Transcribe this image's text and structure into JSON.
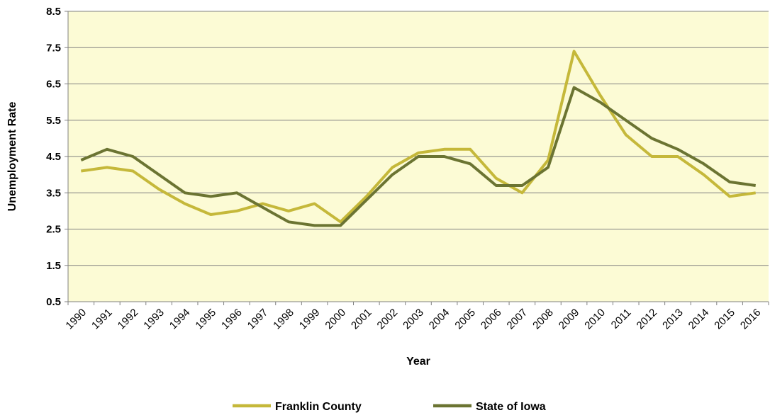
{
  "chart_data": {
    "type": "line",
    "title": "",
    "xlabel": "Year",
    "ylabel": "Unemployment Rate",
    "ylim": [
      0.5,
      8.5
    ],
    "yticks": [
      "0.5",
      "1.5",
      "2.5",
      "3.5",
      "4.5",
      "5.5",
      "6.5",
      "7.5",
      "8.5"
    ],
    "ytick_values": [
      0.5,
      1.5,
      2.5,
      3.5,
      4.5,
      5.5,
      6.5,
      7.5,
      8.5
    ],
    "categories": [
      "1990",
      "1991",
      "1992",
      "1993",
      "1994",
      "1995",
      "1996",
      "1997",
      "1998",
      "1999",
      "2000",
      "2001",
      "2002",
      "2003",
      "2004",
      "2005",
      "2006",
      "2007",
      "2008",
      "2009",
      "2010",
      "2011",
      "2012",
      "2013",
      "2014",
      "2015",
      "2016"
    ],
    "grid": true,
    "plot_background": "#fcfbd5",
    "legend_position": "bottom",
    "series": [
      {
        "name": "Franklin County",
        "color": "#c5b83a",
        "values": [
          4.1,
          4.2,
          4.1,
          3.6,
          3.2,
          2.9,
          3.0,
          3.2,
          3.0,
          3.2,
          2.7,
          3.4,
          4.2,
          4.6,
          4.7,
          4.7,
          3.9,
          3.5,
          4.4,
          7.4,
          6.2,
          5.1,
          4.5,
          4.5,
          4.0,
          3.4,
          3.5
        ]
      },
      {
        "name": "State of Iowa",
        "color": "#6b7432",
        "values": [
          4.4,
          4.7,
          4.5,
          4.0,
          3.5,
          3.4,
          3.5,
          3.1,
          2.7,
          2.6,
          2.6,
          3.3,
          4.0,
          4.5,
          4.5,
          4.3,
          3.7,
          3.7,
          4.2,
          6.4,
          6.0,
          5.5,
          5.0,
          4.7,
          4.3,
          3.8,
          3.7
        ]
      }
    ]
  }
}
